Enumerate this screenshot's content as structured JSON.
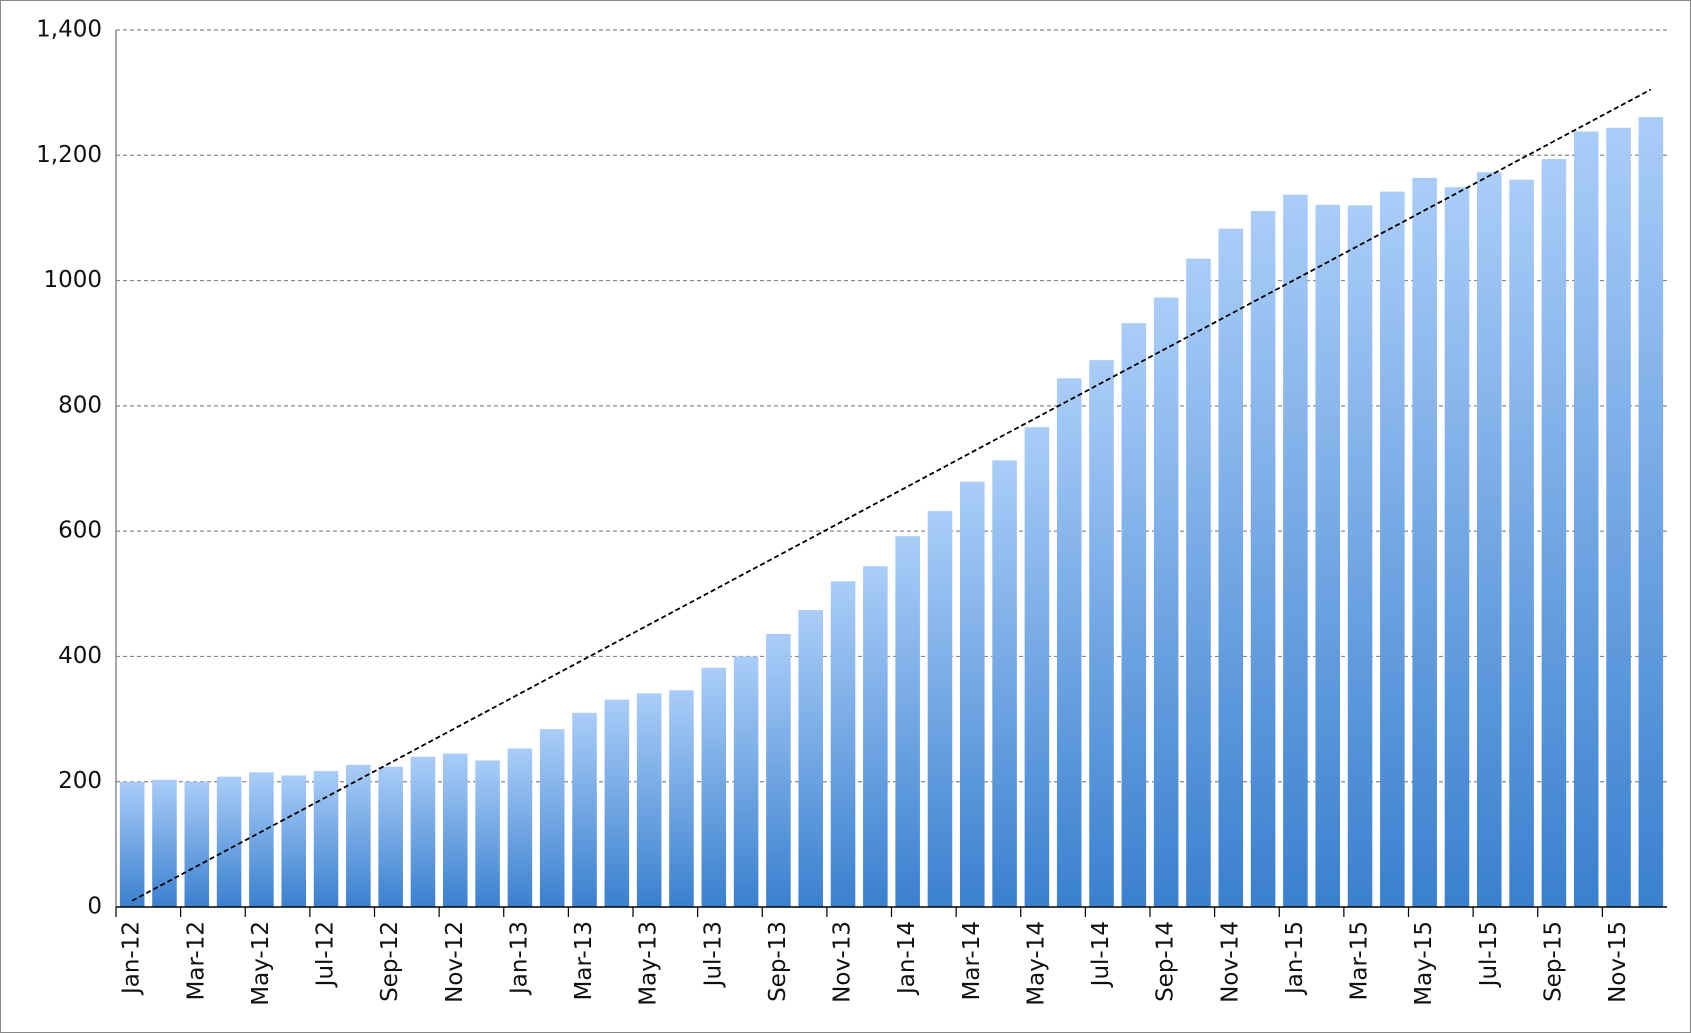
{
  "chart_data": {
    "type": "bar",
    "categories": [
      "Jan-12",
      null,
      "Mar-12",
      null,
      "May-12",
      null,
      "Jul-12",
      null,
      "Sep-12",
      null,
      "Nov-12",
      null,
      "Jan-13",
      null,
      "Mar-13",
      null,
      "May-13",
      null,
      "Jul-13",
      null,
      "Sep-13",
      null,
      "Nov-13",
      null,
      "Jan-14",
      null,
      "Mar-14",
      null,
      "May-14",
      null,
      "Jul-14",
      null,
      "Sep-14",
      null,
      "Nov-14",
      null,
      "Jan-15",
      null,
      "Mar-15",
      null,
      "May-15",
      null,
      "Jul-15",
      null,
      "Sep-15",
      null,
      "Nov-15",
      null
    ],
    "values": [
      200,
      203,
      200,
      208,
      215,
      210,
      217,
      227,
      224,
      240,
      245,
      234,
      253,
      284,
      310,
      331,
      341,
      346,
      382,
      400,
      436,
      474,
      520,
      544,
      592,
      632,
      679,
      713,
      766,
      844,
      873,
      932,
      973,
      1035,
      1083,
      1111,
      1137,
      1121,
      1120,
      1142,
      1164,
      1149,
      1173,
      1161,
      1194,
      1238,
      1244,
      1261
    ],
    "colors": [
      "#aacdf8",
      "#3a80cf"
    ],
    "trendline": [
      10,
      1305
    ],
    "ylim": [
      0,
      1400
    ],
    "yticks": [
      0,
      200,
      400,
      600,
      800,
      1000,
      {
        "value": 1200,
        "label": "1,200"
      },
      {
        "value": 1400,
        "label": "1,400"
      }
    ],
    "grid": true
  }
}
